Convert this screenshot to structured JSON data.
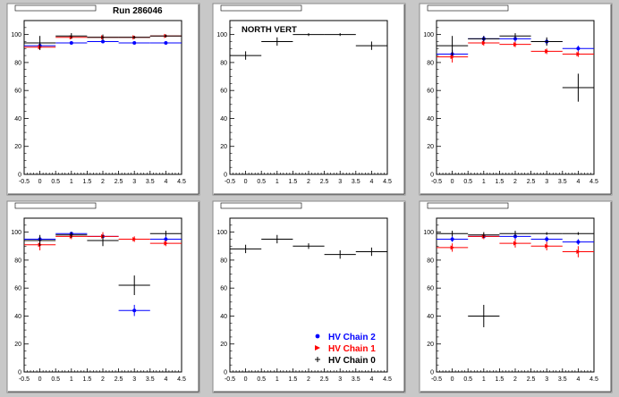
{
  "figure": {
    "run_label": "Run 286046",
    "legend": {
      "entries": [
        {
          "label": "HV Chain 2",
          "color": "#0000ff",
          "marker": "circle"
        },
        {
          "label": "HV Chain 1",
          "color": "#ff0000",
          "marker": "triangle"
        },
        {
          "label": "HV Chain 0",
          "color": "#000000",
          "marker": "cross"
        }
      ]
    }
  },
  "chart_data": [
    {
      "type": "scatter",
      "title": "",
      "annotation": "Run 286046",
      "xlim": [
        -0.5,
        4.5
      ],
      "ylim": [
        0,
        110
      ],
      "xticks": [
        "-0.5",
        "0",
        "0.5",
        "1",
        "1.5",
        "2",
        "2.5",
        "3",
        "3.5",
        "4",
        "4.5"
      ],
      "yticks": [
        "0",
        "20",
        "40",
        "60",
        "80",
        "100"
      ],
      "series": [
        {
          "color": "#0000ff",
          "points": [
            [
              0,
              92,
              2
            ],
            [
              1,
              94,
              1
            ],
            [
              2,
              95,
              1
            ],
            [
              3,
              94,
              1
            ],
            [
              4,
              94,
              1
            ]
          ]
        },
        {
          "color": "#ff0000",
          "points": [
            [
              0,
              91,
              2
            ],
            [
              1,
              98,
              1
            ],
            [
              2,
              98,
              1
            ],
            [
              3,
              98,
              1
            ],
            [
              4,
              99,
              1
            ]
          ]
        },
        {
          "color": "#000000",
          "points": [
            [
              0,
              94,
              5
            ],
            [
              1,
              99,
              2
            ],
            [
              2,
              98,
              2
            ],
            [
              3,
              98,
              1
            ],
            [
              4,
              99,
              1
            ]
          ]
        }
      ]
    },
    {
      "type": "scatter",
      "title": "",
      "annotation": "NORTH VERT",
      "xlim": [
        -0.5,
        4.5
      ],
      "ylim": [
        0,
        110
      ],
      "xticks": [
        "-0.5",
        "0",
        "0.5",
        "1",
        "1.5",
        "2",
        "2.5",
        "3",
        "3.5",
        "4",
        "4.5"
      ],
      "yticks": [
        "0",
        "20",
        "40",
        "60",
        "80",
        "100"
      ],
      "series": [
        {
          "color": "#000000",
          "points": [
            [
              0,
              85,
              3
            ],
            [
              1,
              95,
              3
            ],
            [
              2,
              100,
              1
            ],
            [
              3,
              100,
              1
            ],
            [
              4,
              92,
              3
            ]
          ]
        }
      ]
    },
    {
      "type": "scatter",
      "title": "",
      "annotation": "",
      "xlim": [
        -0.5,
        4.5
      ],
      "ylim": [
        0,
        110
      ],
      "xticks": [
        "-0.5",
        "0",
        "0.5",
        "1",
        "1.5",
        "2",
        "2.5",
        "3",
        "3.5",
        "4",
        "4.5"
      ],
      "yticks": [
        "0",
        "20",
        "40",
        "60",
        "80",
        "100"
      ],
      "series": [
        {
          "color": "#0000ff",
          "points": [
            [
              0,
              86,
              3
            ],
            [
              1,
              97,
              2
            ],
            [
              2,
              97,
              2
            ],
            [
              3,
              95,
              2
            ],
            [
              4,
              90,
              2
            ]
          ]
        },
        {
          "color": "#ff0000",
          "points": [
            [
              0,
              84,
              4
            ],
            [
              1,
              94,
              2
            ],
            [
              2,
              93,
              2
            ],
            [
              3,
              88,
              2
            ],
            [
              4,
              86,
              2
            ]
          ]
        },
        {
          "color": "#000000",
          "points": [
            [
              0,
              92,
              7
            ],
            [
              1,
              97,
              2
            ],
            [
              2,
              99,
              2
            ],
            [
              3,
              95,
              3
            ],
            [
              4,
              62,
              10
            ]
          ]
        }
      ]
    },
    {
      "type": "scatter",
      "title": "",
      "annotation": "",
      "xlim": [
        -0.5,
        4.5
      ],
      "ylim": [
        0,
        110
      ],
      "xticks": [
        "-0.5",
        "0",
        "0.5",
        "1",
        "1.5",
        "2",
        "2.5",
        "3",
        "3.5",
        "4",
        "4.5"
      ],
      "yticks": [
        "0",
        "20",
        "40",
        "60",
        "80",
        "100"
      ],
      "series": [
        {
          "color": "#0000ff",
          "points": [
            [
              0,
              95,
              2
            ],
            [
              1,
              99,
              1
            ],
            [
              2,
              97,
              2
            ],
            [
              3,
              44,
              4
            ],
            [
              4,
              95,
              2
            ]
          ]
        },
        {
          "color": "#ff0000",
          "points": [
            [
              0,
              91,
              4
            ],
            [
              1,
              97,
              2
            ],
            [
              2,
              97,
              3
            ],
            [
              3,
              95,
              2
            ],
            [
              4,
              92,
              2
            ]
          ]
        },
        {
          "color": "#000000",
          "points": [
            [
              0,
              94,
              4
            ],
            [
              1,
              98,
              2
            ],
            [
              2,
              94,
              4
            ],
            [
              3,
              62,
              7
            ],
            [
              4,
              99,
              2
            ]
          ]
        }
      ]
    },
    {
      "type": "scatter",
      "title": "",
      "annotation": "",
      "xlim": [
        -0.5,
        4.5
      ],
      "ylim": [
        0,
        110
      ],
      "xticks": [
        "-0.5",
        "0",
        "0.5",
        "1",
        "1.5",
        "2",
        "2.5",
        "3",
        "3.5",
        "4",
        "4.5"
      ],
      "yticks": [
        "0",
        "20",
        "40",
        "60",
        "80",
        "100"
      ],
      "series": [
        {
          "color": "#000000",
          "points": [
            [
              0,
              88,
              3
            ],
            [
              1,
              95,
              3
            ],
            [
              2,
              90,
              2
            ],
            [
              3,
              84,
              3
            ],
            [
              4,
              86,
              3
            ]
          ]
        }
      ],
      "has_legend": true
    },
    {
      "type": "scatter",
      "title": "",
      "annotation": "",
      "xlim": [
        -0.5,
        4.5
      ],
      "ylim": [
        0,
        110
      ],
      "xticks": [
        "-0.5",
        "0",
        "0.5",
        "1",
        "1.5",
        "2",
        "2.5",
        "3",
        "3.5",
        "4",
        "4.5"
      ],
      "yticks": [
        "0",
        "20",
        "40",
        "60",
        "80",
        "100"
      ],
      "series": [
        {
          "color": "#0000ff",
          "points": [
            [
              0,
              95,
              2
            ],
            [
              1,
              97,
              1
            ],
            [
              2,
              97,
              2
            ],
            [
              3,
              95,
              2
            ],
            [
              4,
              93,
              2
            ]
          ]
        },
        {
          "color": "#ff0000",
          "points": [
            [
              0,
              89,
              3
            ],
            [
              1,
              97,
              2
            ],
            [
              2,
              92,
              3
            ],
            [
              3,
              90,
              3
            ],
            [
              4,
              86,
              4
            ]
          ]
        },
        {
          "color": "#000000",
          "points": [
            [
              0,
              99,
              2
            ],
            [
              1,
              98,
              2
            ],
            [
              2,
              99,
              2
            ],
            [
              3,
              99,
              1
            ],
            [
              4,
              99,
              1
            ],
            [
              1,
              40,
              8
            ]
          ]
        }
      ]
    }
  ]
}
